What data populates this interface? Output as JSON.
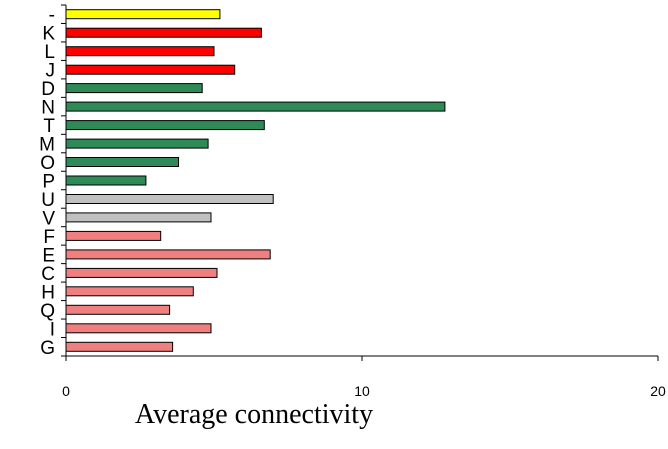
{
  "chart_data": {
    "type": "bar",
    "orientation": "horizontal",
    "title": "",
    "xlabel": "Average connectivity",
    "ylabel": "",
    "xlim": [
      0,
      20
    ],
    "xticks": [
      0,
      10,
      20
    ],
    "grid": false,
    "legend": "none",
    "categories": [
      "-",
      "K",
      "L",
      "J",
      "D",
      "N",
      "T",
      "M",
      "O",
      "P",
      "U",
      "V",
      "F",
      "E",
      "C",
      "H",
      "Q",
      "I",
      "G"
    ],
    "values": [
      5.2,
      6.6,
      5.0,
      5.7,
      4.6,
      12.8,
      6.7,
      4.8,
      3.8,
      2.7,
      7.0,
      4.9,
      3.2,
      6.9,
      5.1,
      4.3,
      3.5,
      4.9,
      3.6
    ],
    "colors": [
      "#ffff00",
      "#ff0000",
      "#ff0000",
      "#ff0000",
      "#2e8b57",
      "#2e8b57",
      "#2e8b57",
      "#2e8b57",
      "#2e8b57",
      "#2e8b57",
      "#c0c0c0",
      "#c0c0c0",
      "#f08080",
      "#f08080",
      "#f08080",
      "#f08080",
      "#f08080",
      "#f08080",
      "#f08080"
    ]
  }
}
